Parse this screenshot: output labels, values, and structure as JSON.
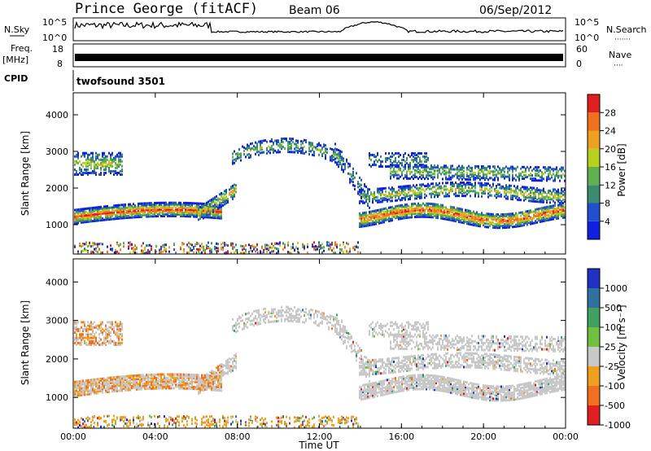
{
  "header": {
    "station": "Prince George (fitACF)",
    "beam": "Beam 06",
    "date": "06/Sep/2012"
  },
  "strip_panels": {
    "nsky": {
      "label": "N.Sky",
      "left_ticks": [
        "10^5",
        "10^0"
      ],
      "right_ticks": [
        "10^5",
        "10^0"
      ],
      "right_label": "N.Search",
      "right_marker": "·······"
    },
    "freq": {
      "label_line1": "Freq.",
      "label_line2": "[MHz]",
      "left_ticks": [
        "18",
        "8"
      ],
      "right_ticks": [
        "60",
        "0"
      ],
      "right_label": "Nave",
      "right_marker": "····"
    },
    "cpid": {
      "label": "CPID",
      "value": "twofsound 3501"
    }
  },
  "chart_data": [
    {
      "type": "heatmap",
      "name": "power",
      "ylabel": "Slant Range [km]",
      "ylim": [
        200,
        4600
      ],
      "yticks": [
        "1000",
        "2000",
        "3000",
        "4000"
      ],
      "xlim": [
        "00:00",
        "24:00"
      ],
      "colorbar_label": "Power [dB]",
      "colorbar_ticks": [
        "4",
        "8",
        "12",
        "16",
        "20",
        "24",
        "28"
      ],
      "colors": [
        "#1020e0",
        "#2050d0",
        "#3a8a70",
        "#60b050",
        "#b8d020",
        "#f0a020",
        "#f07020",
        "#e02020"
      ]
    },
    {
      "type": "heatmap",
      "name": "velocity",
      "ylabel": "Slant Range [km]",
      "ylim": [
        200,
        4600
      ],
      "yticks": [
        "1000",
        "2000",
        "3000",
        "4000"
      ],
      "xlim": [
        "00:00",
        "24:00"
      ],
      "xticks": [
        "00:00",
        "04:00",
        "08:00",
        "12:00",
        "16:00",
        "20:00",
        "00:00"
      ],
      "xlabel": "Time UT",
      "colorbar_label": "Velocity [m s⁻¹]",
      "colorbar_ticks": [
        "1000",
        "500",
        "100",
        "25",
        "-25",
        "-100",
        "-500",
        "-1000"
      ],
      "colors": [
        "#2030c0",
        "#3070a0",
        "#40a060",
        "#70c040",
        "#c8c8c8",
        "#f0a020",
        "#f07020",
        "#e02020"
      ]
    }
  ]
}
